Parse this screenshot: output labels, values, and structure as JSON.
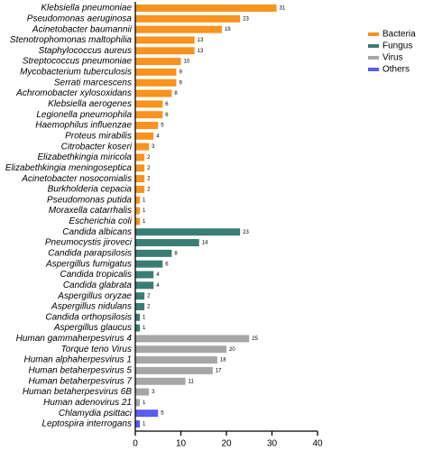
{
  "chart_data": {
    "type": "hbar",
    "series": [
      {
        "name": "Bacteria",
        "color": "#f7931e",
        "categories": [
          "Klebsiella pneumoniae",
          "Pseudomonas aeruginosa",
          "Acinetobacter baumannii",
          "Stenotrophomonas maltophilia",
          "Staphylococcus aureus",
          "Streptococcus pneumoniae",
          "Mycobacterium tuberculosis",
          "Serrati marcescens",
          "Achromobacter xylosoxidans",
          "Klebsiella aerogenes",
          "Legionella pneumophila",
          "Haemophilus influenzae",
          "Proteus mirabilis",
          "Citrobacter koseri",
          "Elizabethkingia miricola",
          "Elizabethkingia meningoseptica",
          "Acinetobacter nosocomialis",
          "Burkholderia cepacia",
          "Pseudomonas putida",
          "Moraxella catarrhalis",
          "Escherichia coli"
        ],
        "values": [
          31,
          23,
          19,
          13,
          13,
          10,
          9,
          9,
          8,
          6,
          6,
          5,
          4,
          3,
          2,
          2,
          2,
          2,
          1,
          1,
          1
        ]
      },
      {
        "name": "Fungus",
        "color": "#3a7d74",
        "categories": [
          "Candida albicans",
          "Pneumocystis jiroveci",
          "Candida parapsilosis",
          "Aspergillus fumigatus",
          "Candida tropicalis",
          "Candida glabrata",
          "Aspergillus oryzae",
          "Aspergillus nidulans",
          "Candida orthopsilosis",
          "Aspergillus glaucus"
        ],
        "values": [
          23,
          14,
          8,
          6,
          4,
          4,
          2,
          2,
          1,
          1
        ]
      },
      {
        "name": "Virus",
        "color": "#a6a6a6",
        "categories": [
          "Human gammaherpesvirus 4",
          "Torque teno Virus",
          "Human alphaherpesvirus 1",
          "Human betaherpesvirus 5",
          "Human betaherpesvirus 7",
          "Human betaherpesvirus 6B",
          "Human adenovirus 21"
        ],
        "values": [
          25,
          20,
          18,
          17,
          11,
          3,
          1
        ]
      },
      {
        "name": "Others",
        "color": "#5b5bf0",
        "categories": [
          "Chlamydia psittaci",
          "Leptospira interrogans"
        ],
        "values": [
          5,
          1
        ]
      }
    ],
    "xlim": [
      0,
      40
    ],
    "xticks": [
      0,
      10,
      20,
      30,
      40
    ]
  }
}
